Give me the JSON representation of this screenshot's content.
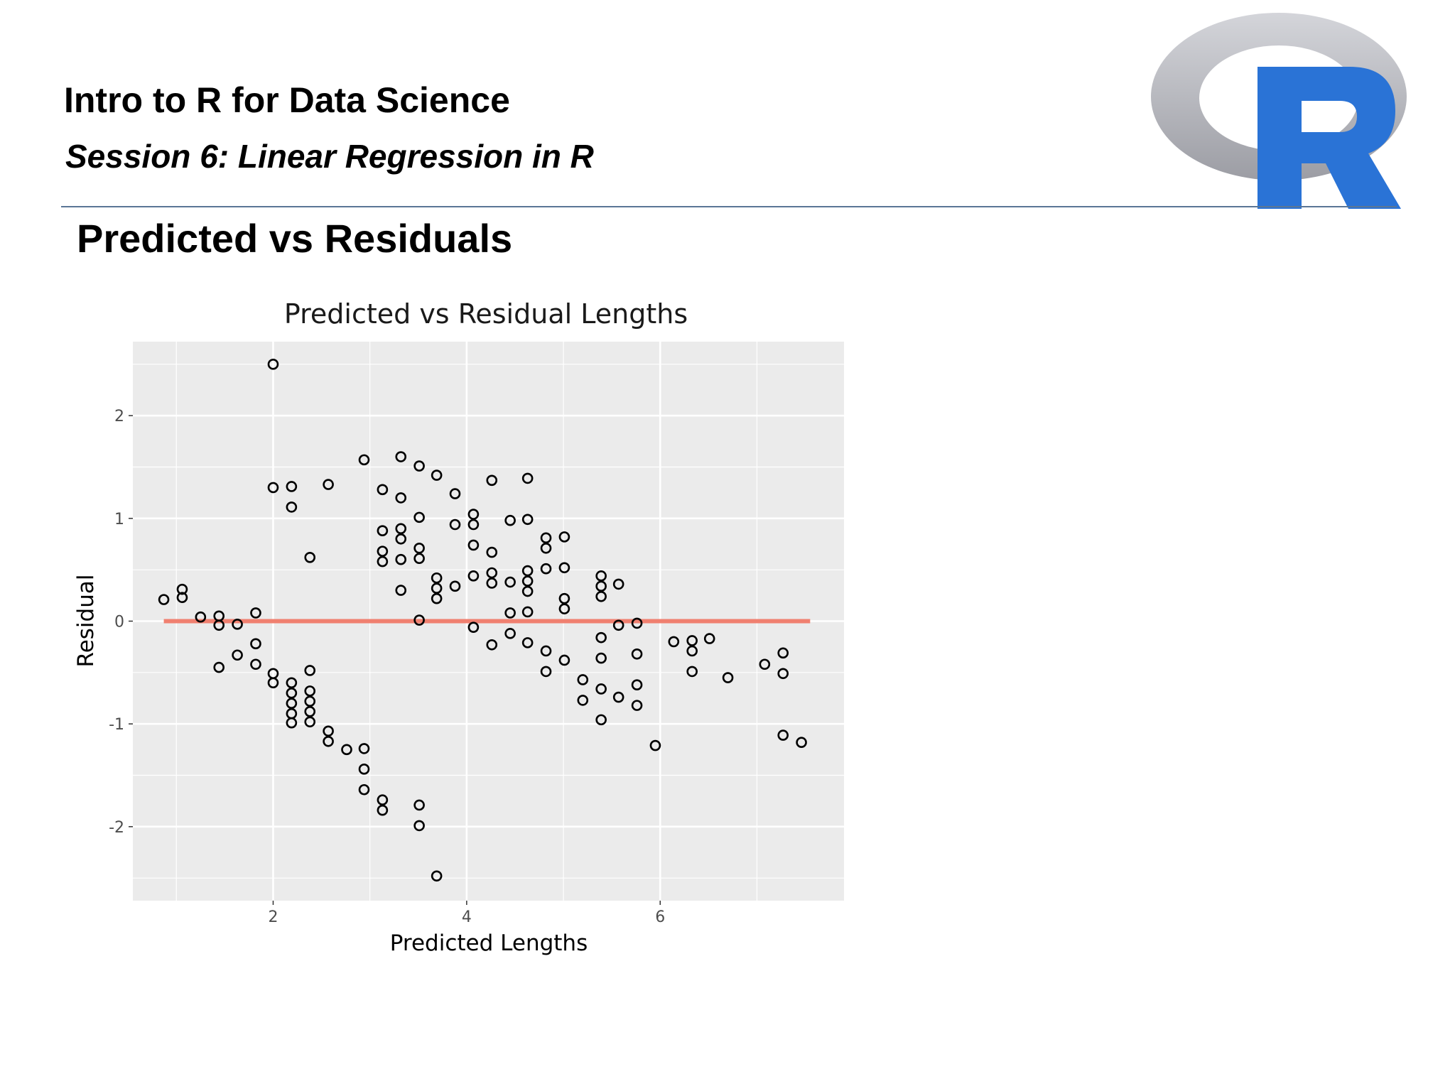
{
  "header": {
    "course_title": "Intro to R for Data Science",
    "session_title": "Session 6: Linear Regression in R"
  },
  "logo": {
    "icon": "r-logo-icon",
    "letter": "R",
    "ring_color": "#b8b9bf",
    "letter_color": "#2a73d6"
  },
  "slide": {
    "title": "Predicted vs Residuals"
  },
  "colors": {
    "panel_bg": "#ebebeb",
    "grid": "#ffffff",
    "reference_line": "#f08070",
    "point_stroke": "#000000"
  },
  "chart_data": {
    "type": "scatter",
    "title": "Predicted vs Residual Lengths",
    "xlabel": "Predicted Lengths",
    "ylabel": "Residual",
    "xlim": [
      0.55,
      7.9
    ],
    "ylim": [
      -2.72,
      2.72
    ],
    "x_ticks": [
      {
        "value": 2,
        "label": "2"
      },
      {
        "value": 4,
        "label": "4"
      },
      {
        "value": 6,
        "label": "6"
      }
    ],
    "y_ticks": [
      {
        "value": -2,
        "label": "-2"
      },
      {
        "value": -1,
        "label": "-1"
      },
      {
        "value": 0,
        "label": "0"
      },
      {
        "value": 1,
        "label": "1"
      },
      {
        "value": 2,
        "label": "2"
      }
    ],
    "grid": true,
    "reference_line": {
      "y": 0,
      "x_from": 0.87,
      "x_to": 7.55
    },
    "points": [
      {
        "x": 0.87,
        "y": 0.21
      },
      {
        "x": 1.06,
        "y": 0.31
      },
      {
        "x": 1.06,
        "y": 0.23
      },
      {
        "x": 1.25,
        "y": 0.04
      },
      {
        "x": 1.44,
        "y": 0.05
      },
      {
        "x": 1.44,
        "y": -0.04
      },
      {
        "x": 1.44,
        "y": -0.45
      },
      {
        "x": 1.63,
        "y": -0.03
      },
      {
        "x": 1.63,
        "y": -0.33
      },
      {
        "x": 1.82,
        "y": 0.08
      },
      {
        "x": 1.82,
        "y": -0.22
      },
      {
        "x": 1.82,
        "y": -0.42
      },
      {
        "x": 2.0,
        "y": 2.5
      },
      {
        "x": 2.0,
        "y": 1.3
      },
      {
        "x": 2.0,
        "y": -0.51
      },
      {
        "x": 2.0,
        "y": -0.6
      },
      {
        "x": 2.19,
        "y": 1.31
      },
      {
        "x": 2.19,
        "y": 1.11
      },
      {
        "x": 2.19,
        "y": -0.6
      },
      {
        "x": 2.19,
        "y": -0.7
      },
      {
        "x": 2.19,
        "y": -0.8
      },
      {
        "x": 2.19,
        "y": -0.9
      },
      {
        "x": 2.19,
        "y": -0.99
      },
      {
        "x": 2.38,
        "y": 0.62
      },
      {
        "x": 2.38,
        "y": -0.48
      },
      {
        "x": 2.38,
        "y": -0.68
      },
      {
        "x": 2.38,
        "y": -0.78
      },
      {
        "x": 2.38,
        "y": -0.88
      },
      {
        "x": 2.38,
        "y": -0.98
      },
      {
        "x": 2.57,
        "y": 1.33
      },
      {
        "x": 2.57,
        "y": -1.07
      },
      {
        "x": 2.57,
        "y": -1.17
      },
      {
        "x": 2.76,
        "y": -1.25
      },
      {
        "x": 2.94,
        "y": 1.57
      },
      {
        "x": 2.94,
        "y": -1.24
      },
      {
        "x": 2.94,
        "y": -1.44
      },
      {
        "x": 2.94,
        "y": -1.64
      },
      {
        "x": 3.13,
        "y": 1.28
      },
      {
        "x": 3.13,
        "y": 0.88
      },
      {
        "x": 3.13,
        "y": 0.68
      },
      {
        "x": 3.13,
        "y": 0.58
      },
      {
        "x": 3.13,
        "y": -1.74
      },
      {
        "x": 3.13,
        "y": -1.84
      },
      {
        "x": 3.32,
        "y": 1.6
      },
      {
        "x": 3.32,
        "y": 1.2
      },
      {
        "x": 3.32,
        "y": 0.9
      },
      {
        "x": 3.32,
        "y": 0.8
      },
      {
        "x": 3.32,
        "y": 0.6
      },
      {
        "x": 3.32,
        "y": 0.3
      },
      {
        "x": 3.51,
        "y": 1.51
      },
      {
        "x": 3.51,
        "y": 1.01
      },
      {
        "x": 3.51,
        "y": 0.71
      },
      {
        "x": 3.51,
        "y": 0.61
      },
      {
        "x": 3.51,
        "y": 0.01
      },
      {
        "x": 3.51,
        "y": -1.79
      },
      {
        "x": 3.51,
        "y": -1.99
      },
      {
        "x": 3.69,
        "y": 1.42
      },
      {
        "x": 3.69,
        "y": 0.42
      },
      {
        "x": 3.69,
        "y": 0.32
      },
      {
        "x": 3.69,
        "y": 0.22
      },
      {
        "x": 3.69,
        "y": -2.48
      },
      {
        "x": 3.88,
        "y": 1.24
      },
      {
        "x": 3.88,
        "y": 0.94
      },
      {
        "x": 3.88,
        "y": 0.34
      },
      {
        "x": 4.07,
        "y": 1.04
      },
      {
        "x": 4.07,
        "y": 0.94
      },
      {
        "x": 4.07,
        "y": 0.74
      },
      {
        "x": 4.07,
        "y": 0.44
      },
      {
        "x": 4.07,
        "y": -0.06
      },
      {
        "x": 4.26,
        "y": 1.37
      },
      {
        "x": 4.26,
        "y": 0.67
      },
      {
        "x": 4.26,
        "y": 0.47
      },
      {
        "x": 4.26,
        "y": 0.37
      },
      {
        "x": 4.26,
        "y": -0.23
      },
      {
        "x": 4.45,
        "y": 0.98
      },
      {
        "x": 4.45,
        "y": 0.38
      },
      {
        "x": 4.45,
        "y": 0.08
      },
      {
        "x": 4.45,
        "y": -0.12
      },
      {
        "x": 4.63,
        "y": 1.39
      },
      {
        "x": 4.63,
        "y": 0.99
      },
      {
        "x": 4.63,
        "y": 0.49
      },
      {
        "x": 4.63,
        "y": 0.39
      },
      {
        "x": 4.63,
        "y": 0.29
      },
      {
        "x": 4.63,
        "y": 0.09
      },
      {
        "x": 4.63,
        "y": -0.21
      },
      {
        "x": 4.82,
        "y": 0.81
      },
      {
        "x": 4.82,
        "y": 0.71
      },
      {
        "x": 4.82,
        "y": 0.51
      },
      {
        "x": 4.82,
        "y": -0.29
      },
      {
        "x": 4.82,
        "y": -0.49
      },
      {
        "x": 5.01,
        "y": 0.82
      },
      {
        "x": 5.01,
        "y": 0.52
      },
      {
        "x": 5.01,
        "y": 0.22
      },
      {
        "x": 5.01,
        "y": 0.12
      },
      {
        "x": 5.01,
        "y": -0.38
      },
      {
        "x": 5.2,
        "y": -0.57
      },
      {
        "x": 5.2,
        "y": -0.77
      },
      {
        "x": 5.39,
        "y": 0.44
      },
      {
        "x": 5.39,
        "y": 0.34
      },
      {
        "x": 5.39,
        "y": 0.24
      },
      {
        "x": 5.39,
        "y": -0.16
      },
      {
        "x": 5.39,
        "y": -0.36
      },
      {
        "x": 5.39,
        "y": -0.66
      },
      {
        "x": 5.39,
        "y": -0.96
      },
      {
        "x": 5.57,
        "y": 0.36
      },
      {
        "x": 5.57,
        "y": -0.04
      },
      {
        "x": 5.57,
        "y": -0.74
      },
      {
        "x": 5.76,
        "y": -0.02
      },
      {
        "x": 5.76,
        "y": -0.32
      },
      {
        "x": 5.76,
        "y": -0.62
      },
      {
        "x": 5.76,
        "y": -0.82
      },
      {
        "x": 5.95,
        "y": -1.21
      },
      {
        "x": 6.14,
        "y": -0.2
      },
      {
        "x": 6.33,
        "y": -0.19
      },
      {
        "x": 6.33,
        "y": -0.29
      },
      {
        "x": 6.33,
        "y": -0.49
      },
      {
        "x": 6.51,
        "y": -0.17
      },
      {
        "x": 6.7,
        "y": -0.55
      },
      {
        "x": 7.08,
        "y": -0.42
      },
      {
        "x": 7.27,
        "y": -0.31
      },
      {
        "x": 7.27,
        "y": -0.51
      },
      {
        "x": 7.27,
        "y": -1.11
      },
      {
        "x": 7.46,
        "y": -1.18
      }
    ]
  }
}
